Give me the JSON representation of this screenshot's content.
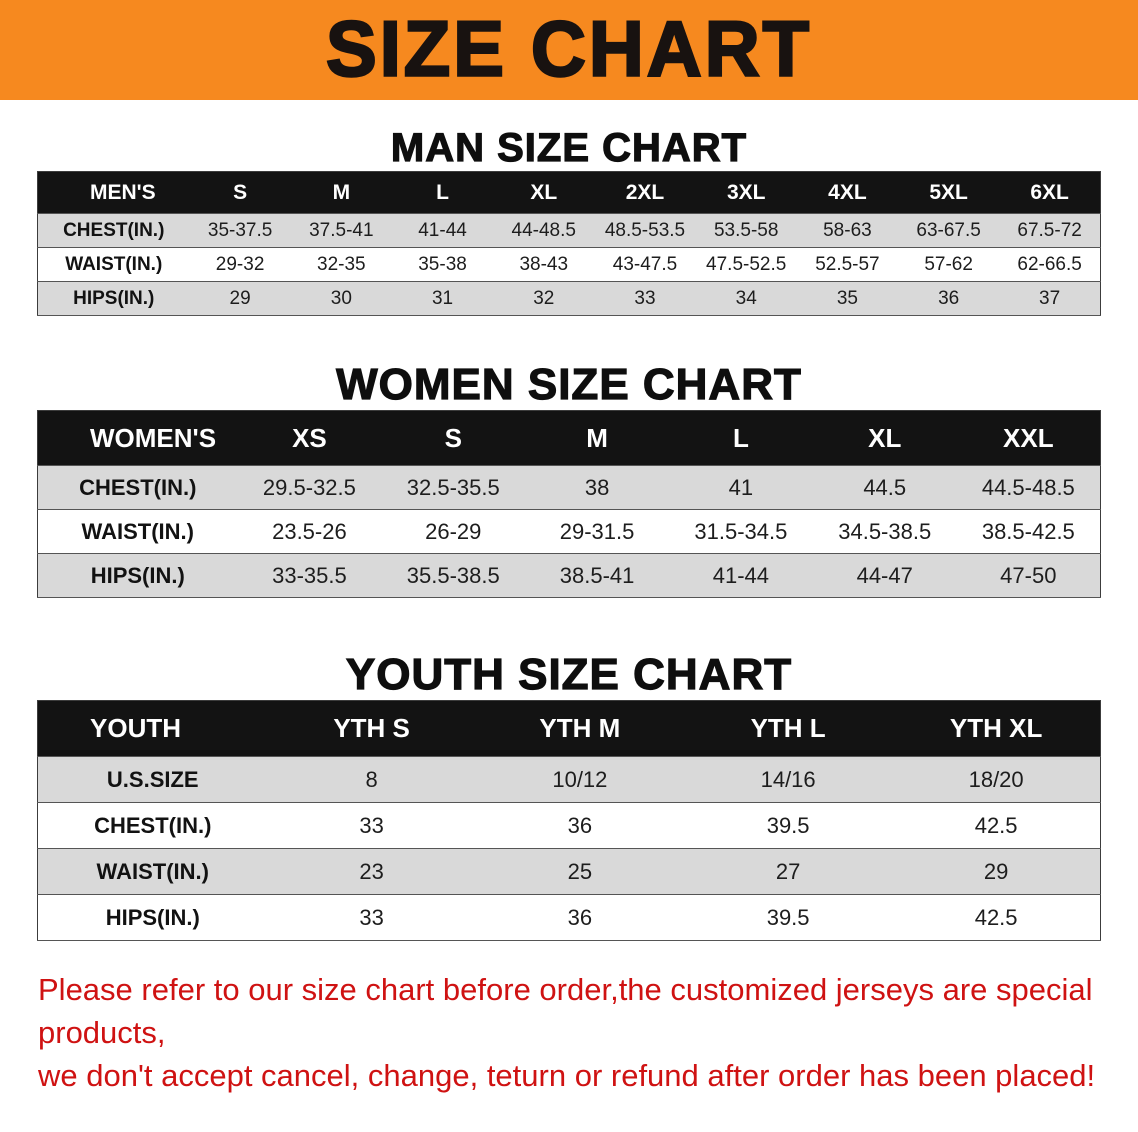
{
  "banner": {
    "title": "SIZE CHART"
  },
  "men": {
    "heading": "MAN SIZE CHART",
    "corner": "MEN'S",
    "columns": [
      "S",
      "M",
      "L",
      "XL",
      "2XL",
      "3XL",
      "4XL",
      "5XL",
      "6XL"
    ],
    "rows": [
      {
        "label": "CHEST(IN.)",
        "values": [
          "35-37.5",
          "37.5-41",
          "41-44",
          "44-48.5",
          "48.5-53.5",
          "53.5-58",
          "58-63",
          "63-67.5",
          "67.5-72"
        ]
      },
      {
        "label": "WAIST(IN.)",
        "values": [
          "29-32",
          "32-35",
          "35-38",
          "38-43",
          "43-47.5",
          "47.5-52.5",
          "52.5-57",
          "57-62",
          "62-66.5"
        ]
      },
      {
        "label": "HIPS(IN.)",
        "values": [
          "29",
          "30",
          "31",
          "32",
          "33",
          "34",
          "35",
          "36",
          "37"
        ]
      }
    ]
  },
  "women": {
    "heading": "WOMEN SIZE CHART",
    "corner": "WOMEN'S",
    "columns": [
      "XS",
      "S",
      "M",
      "L",
      "XL",
      "XXL"
    ],
    "rows": [
      {
        "label": "CHEST(IN.)",
        "values": [
          "29.5-32.5",
          "32.5-35.5",
          "38",
          "41",
          "44.5",
          "44.5-48.5"
        ]
      },
      {
        "label": "WAIST(IN.)",
        "values": [
          "23.5-26",
          "26-29",
          "29-31.5",
          "31.5-34.5",
          "34.5-38.5",
          "38.5-42.5"
        ]
      },
      {
        "label": "HIPS(IN.)",
        "values": [
          "33-35.5",
          "35.5-38.5",
          "38.5-41",
          "41-44",
          "44-47",
          "47-50"
        ]
      }
    ]
  },
  "youth": {
    "heading": "YOUTH SIZE CHART",
    "corner": "YOUTH",
    "columns": [
      "YTH S",
      "YTH M",
      "YTH L",
      "YTH XL"
    ],
    "rows": [
      {
        "label": "U.S.SIZE",
        "values": [
          "8",
          "10/12",
          "14/16",
          "18/20"
        ]
      },
      {
        "label": "CHEST(IN.)",
        "values": [
          "33",
          "36",
          "39.5",
          "42.5"
        ]
      },
      {
        "label": "WAIST(IN.)",
        "values": [
          "23",
          "25",
          "27",
          "29"
        ]
      },
      {
        "label": "HIPS(IN.)",
        "values": [
          "33",
          "36",
          "39.5",
          "42.5"
        ]
      }
    ]
  },
  "note": {
    "line1": "Please refer to our size chart before order,the customized jerseys are special products,",
    "line2": "we don't accept cancel, change, teturn or refund after order has been placed!"
  },
  "colors": {
    "banner_orange": "#f6891f",
    "header_black": "#131313",
    "row_gray": "#d9d9d9",
    "note_red": "#cf1212"
  }
}
